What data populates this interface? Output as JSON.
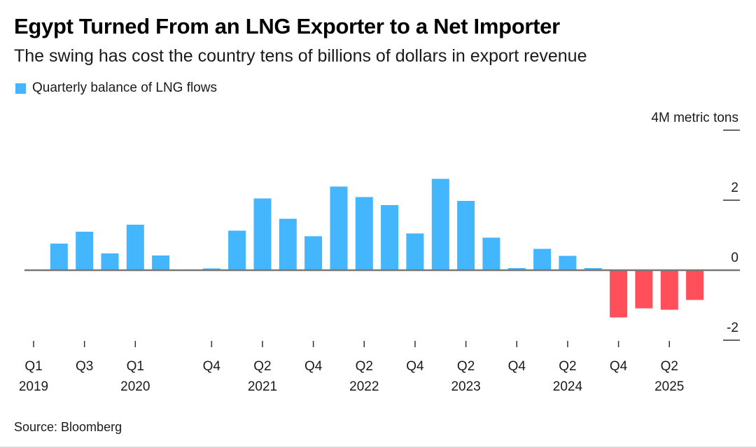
{
  "chart_data": {
    "type": "bar",
    "title": "Egypt Turned From an LNG Exporter to a Net Importer",
    "subtitle": "The swing has cost the country tens of billions of dollars in export revenue",
    "legend": [
      {
        "name": "Quarterly balance of LNG flows",
        "color": "#44b6fd"
      }
    ],
    "legend_position": "top-left",
    "ylabel": "4M metric tons",
    "ylim": [
      -2,
      4
    ],
    "yticks": [
      4,
      2,
      0,
      -2
    ],
    "ytick_labels": [
      "4M metric tons",
      "2",
      "0",
      "-2"
    ],
    "y_axis_side": "right",
    "grid": false,
    "positive_color": "#44b6fd",
    "negative_color": "#ff4f5a",
    "categories": [
      "Q1 2019",
      "Q2 2019",
      "Q3 2019",
      "Q4 2019",
      "Q1 2020",
      "Q2 2020",
      "Q3 2020",
      "Q4 2020",
      "Q1 2021",
      "Q2 2021",
      "Q3 2021",
      "Q4 2021",
      "Q1 2022",
      "Q2 2022",
      "Q3 2022",
      "Q4 2022",
      "Q1 2023",
      "Q2 2023",
      "Q3 2023",
      "Q4 2023",
      "Q1 2024",
      "Q2 2024",
      "Q3 2024",
      "Q4 2024",
      "Q1 2025",
      "Q2 2025",
      "Q3 2025"
    ],
    "values": [
      0,
      0.76,
      1.1,
      0.48,
      1.3,
      0.42,
      0,
      0.05,
      1.13,
      2.05,
      1.47,
      0.97,
      2.39,
      2.09,
      1.86,
      1.05,
      2.61,
      1.98,
      0.93,
      0.06,
      0.61,
      0.41,
      0.06,
      -1.35,
      -1.09,
      -1.13,
      -0.85
    ],
    "xticks": [
      {
        "index": 0,
        "quarter": "Q1",
        "year": "2019"
      },
      {
        "index": 2,
        "quarter": "Q3",
        "year": ""
      },
      {
        "index": 4,
        "quarter": "Q1",
        "year": "2020"
      },
      {
        "index": 7,
        "quarter": "Q4",
        "year": ""
      },
      {
        "index": 9,
        "quarter": "Q2",
        "year": "2021"
      },
      {
        "index": 11,
        "quarter": "Q4",
        "year": ""
      },
      {
        "index": 13,
        "quarter": "Q2",
        "year": "2022"
      },
      {
        "index": 15,
        "quarter": "Q4",
        "year": ""
      },
      {
        "index": 17,
        "quarter": "Q2",
        "year": "2023"
      },
      {
        "index": 19,
        "quarter": "Q4",
        "year": ""
      },
      {
        "index": 21,
        "quarter": "Q2",
        "year": "2024"
      },
      {
        "index": 23,
        "quarter": "Q4",
        "year": ""
      },
      {
        "index": 25,
        "quarter": "Q2",
        "year": "2025"
      }
    ],
    "source": "Source: Bloomberg"
  }
}
